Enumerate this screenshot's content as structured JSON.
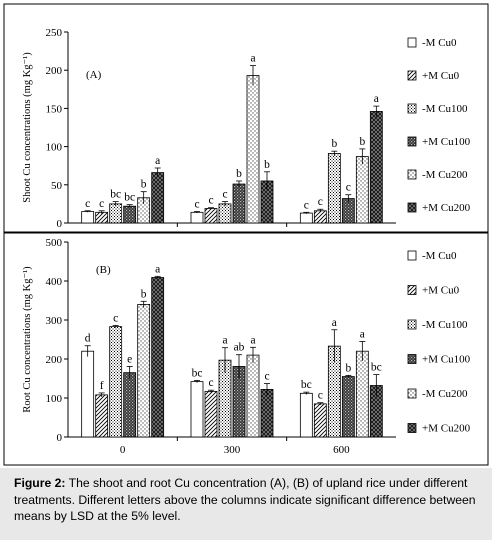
{
  "chart_data": [
    {
      "type": "bar",
      "panel_label": "(A)",
      "ylabel": "Shoot Cu concentrations (mg Kg⁻¹)",
      "ylim": [
        0,
        250
      ],
      "yticks": [
        "0",
        "50",
        "100",
        "150",
        "200",
        "250"
      ],
      "categories": [
        "0",
        "300",
        "600"
      ],
      "series": [
        {
          "name": "-M Cu0",
          "pattern": "white",
          "values": [
            15,
            14,
            13
          ],
          "errors": [
            1,
            1,
            1
          ],
          "letters": [
            "c",
            "c",
            "c"
          ]
        },
        {
          "name": "+M Cu0",
          "pattern": "stripe",
          "values": [
            14,
            19,
            16
          ],
          "errors": [
            2,
            1,
            2
          ],
          "letters": [
            "c",
            "c",
            "c"
          ]
        },
        {
          "name": "-M Cu100",
          "pattern": "dots",
          "values": [
            25,
            25,
            91
          ],
          "errors": [
            3,
            3,
            3
          ],
          "letters": [
            "bc",
            "c",
            "b"
          ]
        },
        {
          "name": "+M Cu100",
          "pattern": "check",
          "values": [
            22,
            51,
            32
          ],
          "errors": [
            2,
            4,
            5
          ],
          "letters": [
            "bc",
            "b",
            "c"
          ]
        },
        {
          "name": "-M Cu200",
          "pattern": "fine",
          "values": [
            33,
            193,
            87
          ],
          "errors": [
            8,
            13,
            10
          ],
          "letters": [
            "b",
            "a",
            "b"
          ]
        },
        {
          "name": "+M Cu200",
          "pattern": "dark",
          "values": [
            66,
            55,
            146
          ],
          "errors": [
            6,
            12,
            7
          ],
          "letters": [
            "a",
            "b",
            "a"
          ]
        }
      ]
    },
    {
      "type": "bar",
      "panel_label": "(B)",
      "ylabel": "Root Cu concentrations (mg Kg⁻¹)",
      "ylim": [
        0,
        500
      ],
      "yticks": [
        "0",
        "100",
        "200",
        "300",
        "400",
        "500"
      ],
      "categories": [
        "0",
        "300",
        "600"
      ],
      "series": [
        {
          "name": "-M Cu0",
          "pattern": "white",
          "values": [
            220,
            142,
            112
          ],
          "errors": [
            14,
            3,
            3
          ],
          "letters": [
            "d",
            "bc",
            "bc"
          ]
        },
        {
          "name": "+M Cu0",
          "pattern": "stripe",
          "values": [
            108,
            117,
            85
          ],
          "errors": [
            5,
            3,
            3
          ],
          "letters": [
            "f",
            "c",
            "c"
          ]
        },
        {
          "name": "-M Cu100",
          "pattern": "dots",
          "values": [
            283,
            197,
            233
          ],
          "errors": [
            3,
            32,
            42
          ],
          "letters": [
            "c",
            "a",
            "a"
          ]
        },
        {
          "name": "+M Cu100",
          "pattern": "check",
          "values": [
            165,
            181,
            155
          ],
          "errors": [
            16,
            30,
            3
          ],
          "letters": [
            "e",
            "ab",
            "b"
          ]
        },
        {
          "name": "-M Cu200",
          "pattern": "fine",
          "values": [
            340,
            210,
            220
          ],
          "errors": [
            8,
            20,
            25
          ],
          "letters": [
            "b",
            "a",
            "a"
          ]
        },
        {
          "name": "+M Cu200",
          "pattern": "dark",
          "values": [
            409,
            122,
            132
          ],
          "errors": [
            3,
            15,
            28
          ],
          "letters": [
            "a",
            "c",
            "bc"
          ]
        }
      ]
    }
  ],
  "caption": {
    "label": "Figure 2:",
    "text": " The shoot and root Cu concentration (A), (B) of upland rice under different treatments. Different letters above the columns indicate significant difference between means by LSD at the 5% level."
  }
}
